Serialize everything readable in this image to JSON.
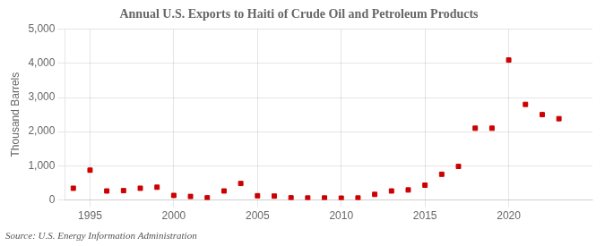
{
  "chart_data": {
    "type": "scatter",
    "title": "Annual U.S. Exports to Haiti of Crude Oil and Petroleum Products",
    "ylabel": "Thousand Barrels",
    "annotations": [
      "Source: U.S. Energy Information Administration"
    ],
    "x": [
      1994,
      1995,
      1996,
      1997,
      1998,
      1999,
      2000,
      2001,
      2002,
      2003,
      2004,
      2005,
      2006,
      2007,
      2008,
      2009,
      2010,
      2011,
      2012,
      2013,
      2014,
      2015,
      2016,
      2017,
      2018,
      2019,
      2020,
      2021,
      2022,
      2023
    ],
    "values": [
      340,
      870,
      260,
      270,
      340,
      370,
      130,
      100,
      60,
      260,
      480,
      120,
      110,
      60,
      55,
      55,
      50,
      55,
      160,
      260,
      290,
      430,
      750,
      980,
      2100,
      2100,
      4100,
      2800,
      2500,
      2380
    ],
    "color": "#cc0000",
    "marker": "square",
    "xlim": [
      1993.5,
      2025
    ],
    "xticks": [
      1995,
      2000,
      2005,
      2010,
      2015,
      2020
    ],
    "ylim": [
      0,
      5000
    ],
    "yticks": [
      0,
      {
        "value": 1000,
        "label": "1,000"
      },
      {
        "value": 2000,
        "label": "2,000"
      },
      {
        "value": 3000,
        "label": "3,000"
      },
      {
        "value": 4000,
        "label": "4,000"
      },
      {
        "value": 5000,
        "label": "5,000"
      }
    ],
    "grid": true
  }
}
